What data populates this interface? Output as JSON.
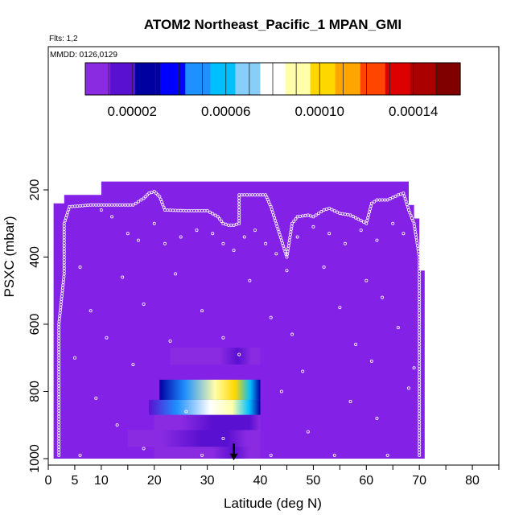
{
  "chart_data": {
    "type": "heatmap",
    "title": "ATOM2 Northeast_Pacific_1 MPAN_GMI",
    "flights_label": "Flts: 1,2",
    "dates_label": "MMDD: 0126,0129",
    "xlabel": "Latitude (deg N)",
    "ylabel": "PSXC (mbar)",
    "xlim": [
      0,
      85
    ],
    "ylim": [
      1000,
      100
    ],
    "x_ticks": [
      0,
      5,
      10,
      20,
      30,
      40,
      50,
      60,
      70,
      80
    ],
    "y_ticks": [
      200,
      400,
      600,
      800,
      1000
    ],
    "colorbar": {
      "range": [
        0,
        0.00016
      ],
      "ticks": [
        "0.00002",
        "0.00006",
        "0.00010",
        "0.00014"
      ],
      "tick_values": [
        2e-05,
        6e-05,
        0.0001,
        0.00014
      ],
      "colors": [
        "#8a2be2",
        "#5a10d0",
        "#0000a0",
        "#0000ff",
        "#1e90ff",
        "#00bfff",
        "#87cefa",
        "#ffffff",
        "#ffffaa",
        "#ffd700",
        "#ffa500",
        "#ff4500",
        "#dd0000",
        "#aa0000",
        "#800000"
      ]
    },
    "background_color": "#8421e6",
    "arrow_latitude": 35,
    "curtain_upper_boundary": [
      [
        1,
        970
      ],
      [
        1,
        240
      ],
      [
        3,
        240
      ],
      [
        3,
        215
      ],
      [
        10,
        215
      ],
      [
        10,
        175
      ],
      [
        68,
        175
      ],
      [
        68,
        245
      ]
    ],
    "curtain_lower_right": [
      [
        69,
        245
      ],
      [
        69,
        285
      ],
      [
        70,
        285
      ],
      [
        70,
        440
      ],
      [
        71,
        440
      ],
      [
        71,
        1000
      ]
    ],
    "curtain_left_edge": [
      [
        1,
        1000
      ],
      [
        1,
        240
      ]
    ],
    "anomaly_blocks": [
      {
        "x0": 23,
        "x1": 40,
        "p0": 670,
        "p1": 720,
        "level": 1e-05
      },
      {
        "x0": 21,
        "x1": 40,
        "p0": 765,
        "p1": 825,
        "level": 9e-05
      },
      {
        "x0": 19,
        "x1": 40,
        "p0": 825,
        "p1": 870,
        "level": 8e-05
      },
      {
        "x0": 20,
        "x1": 40,
        "p0": 870,
        "p1": 915,
        "level": 1.8e-05
      },
      {
        "x0": 15,
        "x1": 40,
        "p0": 915,
        "p1": 965,
        "level": 1.2e-05
      },
      {
        "x0": 20,
        "x1": 40,
        "p0": 965,
        "p1": 1000,
        "level": 1e-05
      }
    ],
    "flight_track": [
      [
        2,
        990
      ],
      [
        2,
        800
      ],
      [
        2,
        600
      ],
      [
        3,
        450
      ],
      [
        3,
        300
      ],
      [
        4,
        250
      ],
      [
        8,
        245
      ],
      [
        12,
        245
      ],
      [
        16,
        245
      ],
      [
        18,
        225
      ],
      [
        19,
        210
      ],
      [
        20,
        205
      ],
      [
        21,
        220
      ],
      [
        22,
        260
      ],
      [
        26,
        262
      ],
      [
        30,
        262
      ],
      [
        32,
        280
      ],
      [
        33,
        300
      ],
      [
        34,
        305
      ],
      [
        35,
        305
      ],
      [
        36,
        300
      ],
      [
        36,
        260
      ],
      [
        36,
        215
      ],
      [
        38,
        215
      ],
      [
        41,
        215
      ],
      [
        42,
        250
      ],
      [
        43,
        300
      ],
      [
        44,
        350
      ],
      [
        45,
        400
      ],
      [
        46,
        300
      ],
      [
        47,
        280
      ],
      [
        49,
        275
      ],
      [
        50,
        280
      ],
      [
        52,
        260
      ],
      [
        53,
        255
      ],
      [
        55,
        270
      ],
      [
        57,
        275
      ],
      [
        60,
        300
      ],
      [
        61,
        240
      ],
      [
        62,
        230
      ],
      [
        64,
        230
      ],
      [
        66,
        215
      ],
      [
        67,
        210
      ],
      [
        68,
        260
      ],
      [
        69,
        300
      ],
      [
        70,
        400
      ],
      [
        70,
        600
      ],
      [
        70,
        800
      ],
      [
        70,
        990
      ]
    ],
    "scattered_points": [
      [
        10,
        260
      ],
      [
        12,
        280
      ],
      [
        15,
        330
      ],
      [
        17,
        350
      ],
      [
        20,
        300
      ],
      [
        22,
        360
      ],
      [
        25,
        340
      ],
      [
        28,
        320
      ],
      [
        31,
        330
      ],
      [
        33,
        360
      ],
      [
        35,
        380
      ],
      [
        37,
        340
      ],
      [
        39,
        320
      ],
      [
        41,
        360
      ],
      [
        43,
        390
      ],
      [
        47,
        340
      ],
      [
        50,
        310
      ],
      [
        53,
        330
      ],
      [
        56,
        360
      ],
      [
        59,
        320
      ],
      [
        62,
        350
      ],
      [
        65,
        300
      ],
      [
        67,
        330
      ],
      [
        6,
        430
      ],
      [
        14,
        460
      ],
      [
        24,
        450
      ],
      [
        38,
        470
      ],
      [
        45,
        440
      ],
      [
        52,
        430
      ],
      [
        60,
        470
      ],
      [
        8,
        560
      ],
      [
        18,
        540
      ],
      [
        29,
        560
      ],
      [
        42,
        580
      ],
      [
        55,
        550
      ],
      [
        63,
        520
      ],
      [
        11,
        640
      ],
      [
        23,
        650
      ],
      [
        33,
        640
      ],
      [
        46,
        630
      ],
      [
        58,
        660
      ],
      [
        66,
        610
      ],
      [
        5,
        700
      ],
      [
        16,
        720
      ],
      [
        36,
        690
      ],
      [
        48,
        740
      ],
      [
        61,
        710
      ],
      [
        69,
        730
      ],
      [
        9,
        820
      ],
      [
        26,
        860
      ],
      [
        44,
        800
      ],
      [
        57,
        830
      ],
      [
        68,
        790
      ],
      [
        13,
        900
      ],
      [
        33,
        940
      ],
      [
        49,
        920
      ],
      [
        62,
        880
      ],
      [
        6,
        990
      ],
      [
        18,
        970
      ],
      [
        29,
        990
      ],
      [
        42,
        990
      ],
      [
        54,
        990
      ],
      [
        64,
        990
      ]
    ]
  }
}
